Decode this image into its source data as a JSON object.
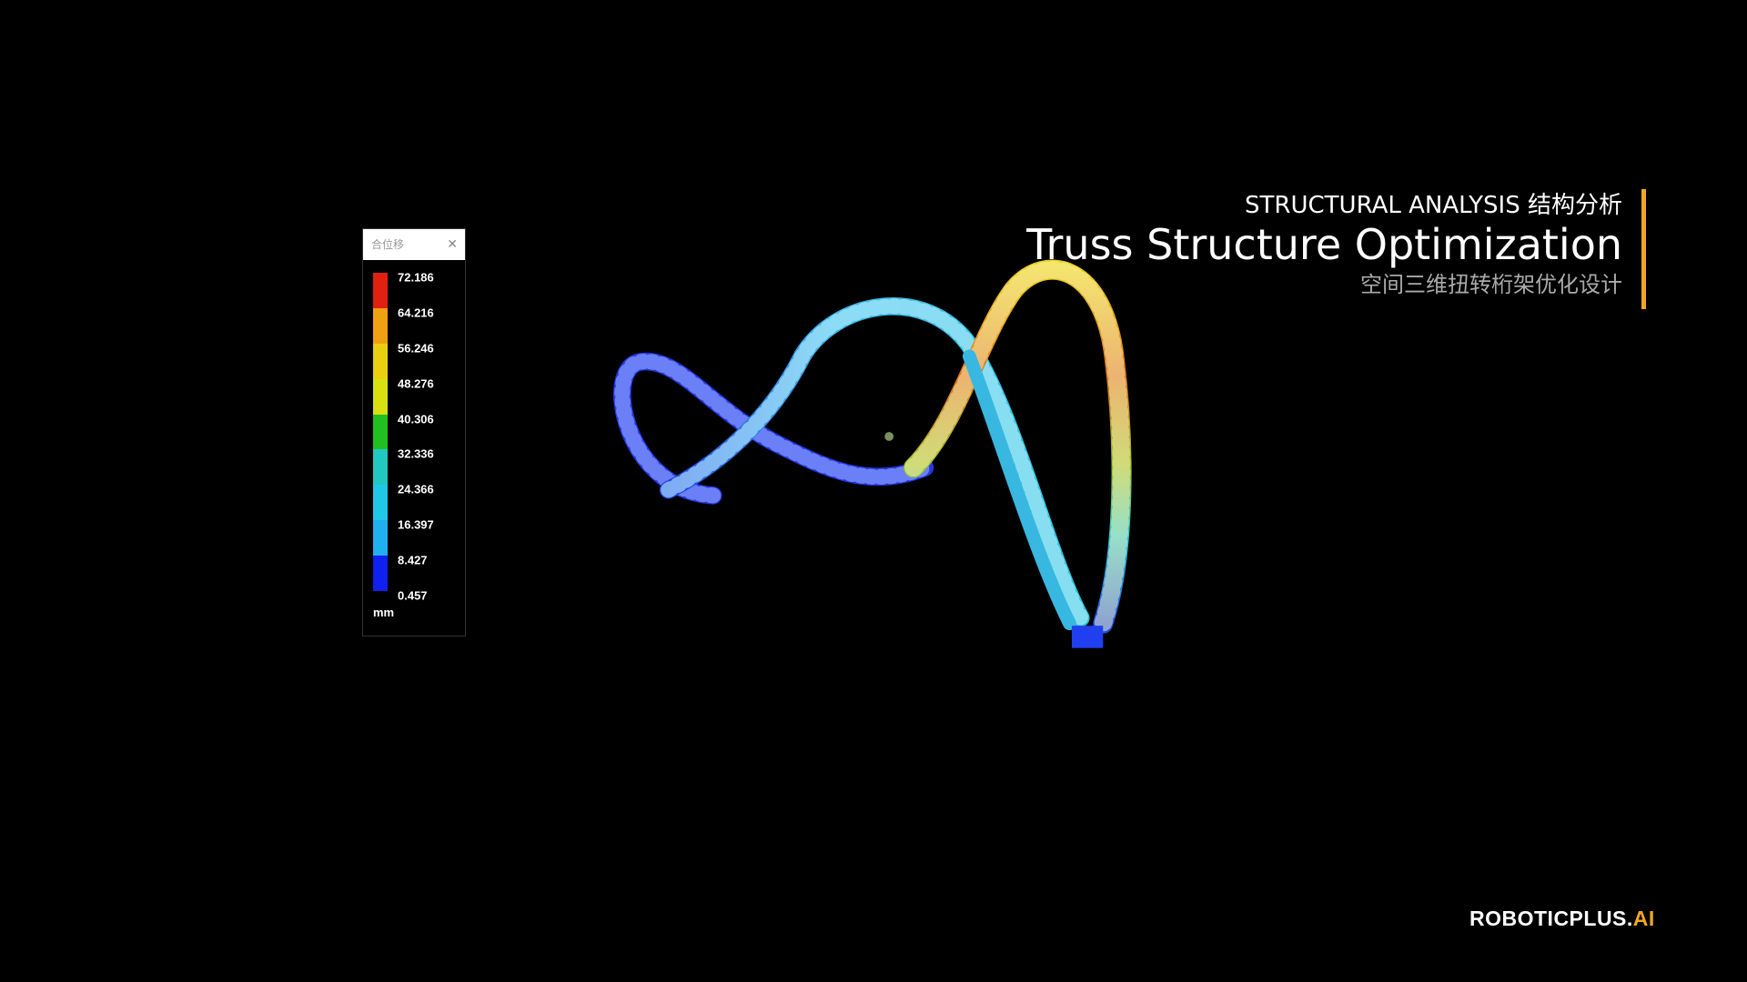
{
  "legend": {
    "title": "合位移",
    "labels": [
      "72.186",
      "64.216",
      "56.246",
      "48.276",
      "40.306",
      "32.336",
      "24.366",
      "16.397",
      "8.427",
      "0.457"
    ],
    "unit": "mm"
  },
  "header": {
    "kicker": "STRUCTURAL ANALYSIS 结构分析",
    "title": "Truss Structure Optimization",
    "subtitle": "空间三维扭转桁架优化设计"
  },
  "logo": {
    "brand": "ROBOTICPLUS.",
    "suffix": "AI"
  }
}
